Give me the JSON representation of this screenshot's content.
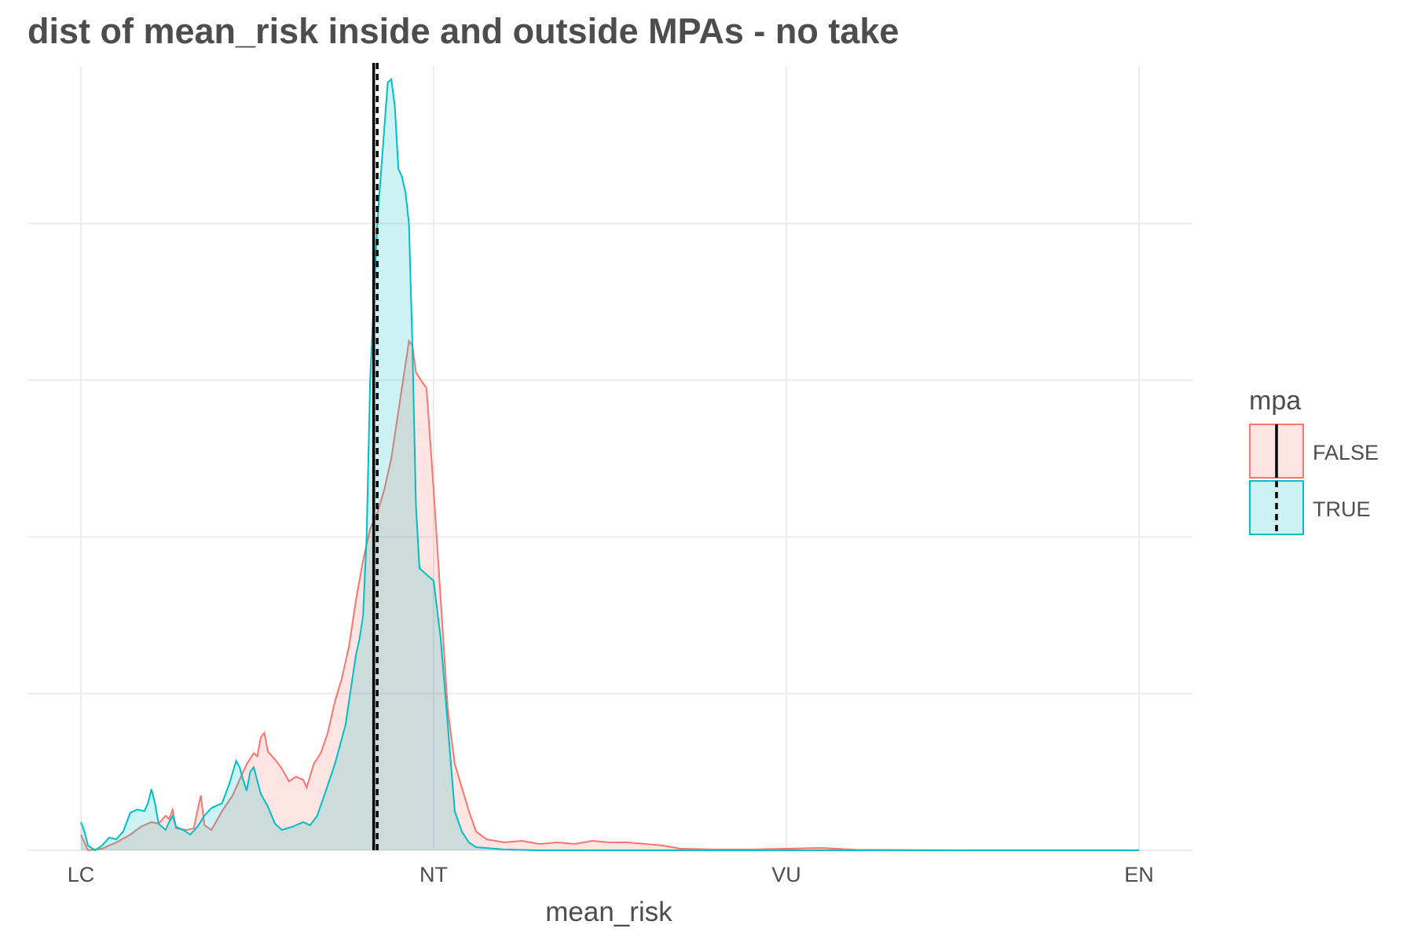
{
  "chart_data": {
    "type": "area",
    "title": "dist of mean_risk inside and outside MPAs - no take",
    "xlabel": "mean_risk",
    "ylabel": "",
    "x_ticks": [
      {
        "value": 1,
        "label": "LC"
      },
      {
        "value": 2,
        "label": "NT"
      },
      {
        "value": 3,
        "label": "VU"
      },
      {
        "value": 4,
        "label": "EN"
      }
    ],
    "xlim": [
      0.85,
      4.15
    ],
    "ylim": [
      0,
      5
    ],
    "y_gridlines": [
      1,
      2,
      3,
      4
    ],
    "grid": true,
    "legend": {
      "title": "mpa",
      "position": "right"
    },
    "series": [
      {
        "name": "FALSE",
        "color": "#F8766D",
        "fill": "#F8766D",
        "mean": 1.83,
        "mean_linetype": "solid",
        "points": [
          [
            1.0,
            0.1
          ],
          [
            1.02,
            0.0
          ],
          [
            1.06,
            0.01
          ],
          [
            1.1,
            0.05
          ],
          [
            1.14,
            0.1
          ],
          [
            1.17,
            0.15
          ],
          [
            1.2,
            0.18
          ],
          [
            1.22,
            0.17
          ],
          [
            1.24,
            0.22
          ],
          [
            1.25,
            0.2
          ],
          [
            1.26,
            0.26
          ],
          [
            1.27,
            0.14
          ],
          [
            1.3,
            0.13
          ],
          [
            1.32,
            0.14
          ],
          [
            1.33,
            0.25
          ],
          [
            1.34,
            0.35
          ],
          [
            1.35,
            0.16
          ],
          [
            1.37,
            0.13
          ],
          [
            1.4,
            0.25
          ],
          [
            1.43,
            0.35
          ],
          [
            1.45,
            0.45
          ],
          [
            1.47,
            0.55
          ],
          [
            1.49,
            0.62
          ],
          [
            1.5,
            0.6
          ],
          [
            1.51,
            0.72
          ],
          [
            1.52,
            0.75
          ],
          [
            1.53,
            0.63
          ],
          [
            1.55,
            0.58
          ],
          [
            1.57,
            0.52
          ],
          [
            1.59,
            0.44
          ],
          [
            1.61,
            0.47
          ],
          [
            1.63,
            0.45
          ],
          [
            1.64,
            0.4
          ],
          [
            1.66,
            0.55
          ],
          [
            1.68,
            0.62
          ],
          [
            1.7,
            0.75
          ],
          [
            1.72,
            0.95
          ],
          [
            1.74,
            1.1
          ],
          [
            1.76,
            1.3
          ],
          [
            1.78,
            1.6
          ],
          [
            1.8,
            1.85
          ],
          [
            1.82,
            2.05
          ],
          [
            1.84,
            2.15
          ],
          [
            1.86,
            2.3
          ],
          [
            1.88,
            2.5
          ],
          [
            1.9,
            2.8
          ],
          [
            1.92,
            3.1
          ],
          [
            1.93,
            3.25
          ],
          [
            1.94,
            3.22
          ],
          [
            1.95,
            3.05
          ],
          [
            1.97,
            2.98
          ],
          [
            1.98,
            2.95
          ],
          [
            2.0,
            2.3
          ],
          [
            2.02,
            1.6
          ],
          [
            2.04,
            0.9
          ],
          [
            2.06,
            0.55
          ],
          [
            2.08,
            0.4
          ],
          [
            2.1,
            0.25
          ],
          [
            2.12,
            0.12
          ],
          [
            2.15,
            0.07
          ],
          [
            2.2,
            0.05
          ],
          [
            2.25,
            0.06
          ],
          [
            2.3,
            0.04
          ],
          [
            2.35,
            0.05
          ],
          [
            2.4,
            0.04
          ],
          [
            2.45,
            0.06
          ],
          [
            2.5,
            0.05
          ],
          [
            2.55,
            0.05
          ],
          [
            2.6,
            0.04
          ],
          [
            2.65,
            0.03
          ],
          [
            2.7,
            0.01
          ],
          [
            2.8,
            0.005
          ],
          [
            2.9,
            0.005
          ],
          [
            3.0,
            0.01
          ],
          [
            3.1,
            0.015
          ],
          [
            3.2,
            0.003
          ],
          [
            3.5,
            0.0
          ],
          [
            4.0,
            0.0
          ]
        ]
      },
      {
        "name": "TRUE",
        "color": "#00BFC4",
        "fill": "#00BFC4",
        "mean": 1.84,
        "mean_linetype": "dashed",
        "points": [
          [
            1.0,
            0.18
          ],
          [
            1.01,
            0.12
          ],
          [
            1.02,
            0.03
          ],
          [
            1.04,
            0.0
          ],
          [
            1.06,
            0.03
          ],
          [
            1.08,
            0.08
          ],
          [
            1.1,
            0.07
          ],
          [
            1.12,
            0.12
          ],
          [
            1.14,
            0.24
          ],
          [
            1.16,
            0.26
          ],
          [
            1.18,
            0.25
          ],
          [
            1.19,
            0.3
          ],
          [
            1.2,
            0.39
          ],
          [
            1.21,
            0.3
          ],
          [
            1.22,
            0.17
          ],
          [
            1.24,
            0.13
          ],
          [
            1.25,
            0.18
          ],
          [
            1.26,
            0.22
          ],
          [
            1.27,
            0.15
          ],
          [
            1.29,
            0.13
          ],
          [
            1.31,
            0.1
          ],
          [
            1.33,
            0.15
          ],
          [
            1.35,
            0.22
          ],
          [
            1.37,
            0.27
          ],
          [
            1.4,
            0.3
          ],
          [
            1.42,
            0.42
          ],
          [
            1.44,
            0.57
          ],
          [
            1.45,
            0.53
          ],
          [
            1.46,
            0.45
          ],
          [
            1.47,
            0.38
          ],
          [
            1.48,
            0.5
          ],
          [
            1.49,
            0.53
          ],
          [
            1.51,
            0.36
          ],
          [
            1.53,
            0.28
          ],
          [
            1.55,
            0.17
          ],
          [
            1.57,
            0.13
          ],
          [
            1.6,
            0.15
          ],
          [
            1.63,
            0.18
          ],
          [
            1.65,
            0.16
          ],
          [
            1.67,
            0.22
          ],
          [
            1.69,
            0.35
          ],
          [
            1.72,
            0.55
          ],
          [
            1.75,
            0.8
          ],
          [
            1.77,
            1.1
          ],
          [
            1.78,
            1.25
          ],
          [
            1.79,
            1.35
          ],
          [
            1.8,
            1.5
          ],
          [
            1.81,
            2.0
          ],
          [
            1.82,
            3.0
          ],
          [
            1.84,
            4.0
          ],
          [
            1.86,
            4.6
          ],
          [
            1.87,
            4.9
          ],
          [
            1.88,
            4.92
          ],
          [
            1.89,
            4.75
          ],
          [
            1.9,
            4.35
          ],
          [
            1.91,
            4.3
          ],
          [
            1.92,
            4.2
          ],
          [
            1.93,
            4.0
          ],
          [
            1.94,
            3.2
          ],
          [
            1.95,
            2.2
          ],
          [
            1.96,
            1.8
          ],
          [
            1.98,
            1.76
          ],
          [
            2.0,
            1.72
          ],
          [
            2.02,
            1.35
          ],
          [
            2.04,
            0.8
          ],
          [
            2.06,
            0.25
          ],
          [
            2.08,
            0.12
          ],
          [
            2.1,
            0.05
          ],
          [
            2.12,
            0.02
          ],
          [
            2.2,
            0.005
          ],
          [
            2.3,
            0.0
          ],
          [
            2.5,
            0.0
          ],
          [
            3.0,
            0.0
          ],
          [
            4.0,
            0.0
          ]
        ]
      }
    ]
  }
}
